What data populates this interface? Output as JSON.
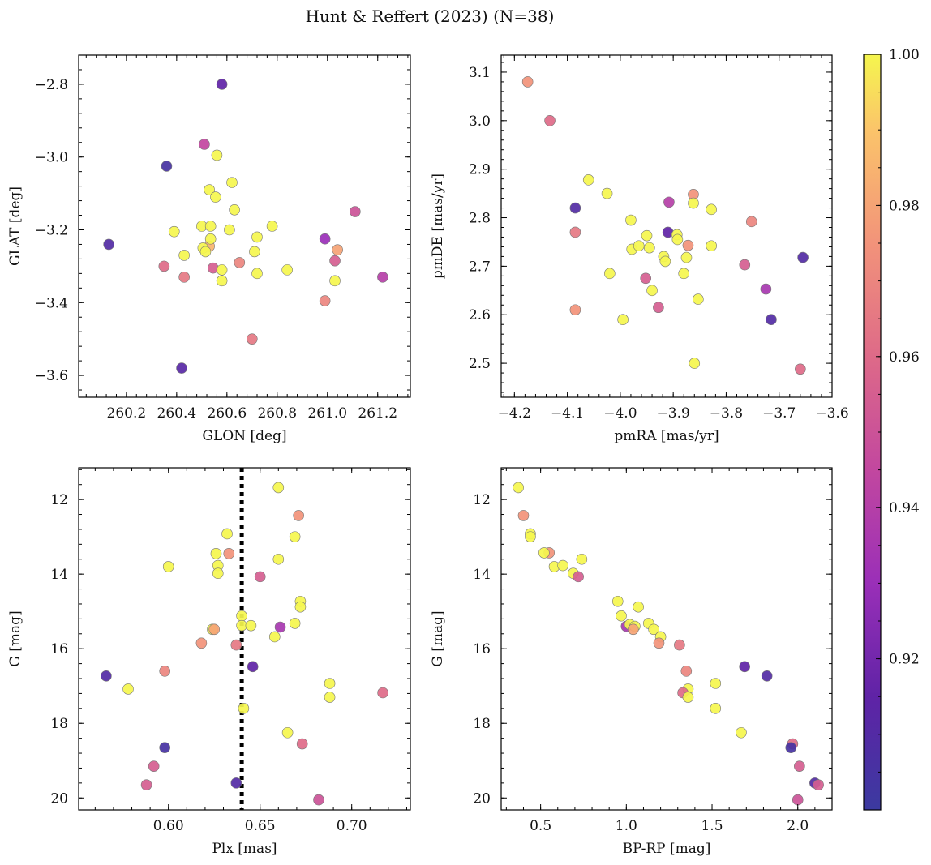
{
  "figure": {
    "title": "Hunt & Reffert (2023) (N=38)"
  },
  "colorbar": {
    "min": 0.9,
    "max": 1.0,
    "ticks": [
      0.92,
      0.94,
      0.96,
      0.98,
      1.0
    ],
    "tick_labels": [
      "0.92",
      "0.94",
      "0.96",
      "0.98",
      "1.00"
    ],
    "colormap": "plasma"
  },
  "chart_data": [
    {
      "type": "scatter",
      "xlabel": "GLON [deg]",
      "ylabel": "GLAT [deg]",
      "xlim": [
        260.01,
        261.33
      ],
      "ylim": [
        -3.66,
        -2.72
      ],
      "xticks": [
        260.2,
        260.4,
        260.6,
        260.8,
        261.0,
        261.2
      ],
      "xtick_labels": [
        "260.2",
        "260.4",
        "260.6",
        "260.8",
        "261.0",
        "261.2"
      ],
      "yticks": [
        -3.6,
        -3.4,
        -3.2,
        -3.0,
        -2.8
      ],
      "ytick_labels": [
        "−3.6",
        "−3.4",
        "−3.2",
        "−3.0",
        "−2.8"
      ],
      "points": [
        {
          "x": 260.13,
          "y": -3.24,
          "c": 0.91
        },
        {
          "x": 260.36,
          "y": -3.025,
          "c": 0.905
        },
        {
          "x": 260.58,
          "y": -2.8,
          "c": 0.915
        },
        {
          "x": 260.42,
          "y": -3.58,
          "c": 0.912
        },
        {
          "x": 260.99,
          "y": -3.225,
          "c": 0.93
        },
        {
          "x": 261.22,
          "y": -3.33,
          "c": 0.94
        },
        {
          "x": 260.51,
          "y": -2.965,
          "c": 0.945
        },
        {
          "x": 261.11,
          "y": -3.15,
          "c": 0.95
        },
        {
          "x": 261.03,
          "y": -3.285,
          "c": 0.955
        },
        {
          "x": 260.35,
          "y": -3.3,
          "c": 0.96
        },
        {
          "x": 260.545,
          "y": -3.305,
          "c": 0.955
        },
        {
          "x": 260.43,
          "y": -3.33,
          "c": 0.965
        },
        {
          "x": 260.7,
          "y": -3.5,
          "c": 0.965
        },
        {
          "x": 260.99,
          "y": -3.395,
          "c": 0.97
        },
        {
          "x": 260.65,
          "y": -3.29,
          "c": 0.97
        },
        {
          "x": 261.04,
          "y": -3.255,
          "c": 0.98
        },
        {
          "x": 260.53,
          "y": -3.245,
          "c": 0.985
        },
        {
          "x": 260.56,
          "y": -2.995,
          "c": 1.0
        },
        {
          "x": 260.62,
          "y": -3.07,
          "c": 1.0
        },
        {
          "x": 260.53,
          "y": -3.09,
          "c": 1.0
        },
        {
          "x": 260.555,
          "y": -3.11,
          "c": 1.0
        },
        {
          "x": 260.63,
          "y": -3.145,
          "c": 1.0
        },
        {
          "x": 260.5,
          "y": -3.19,
          "c": 1.0
        },
        {
          "x": 260.535,
          "y": -3.19,
          "c": 1.0
        },
        {
          "x": 260.39,
          "y": -3.205,
          "c": 1.0
        },
        {
          "x": 260.61,
          "y": -3.2,
          "c": 1.0
        },
        {
          "x": 260.535,
          "y": -3.225,
          "c": 1.0
        },
        {
          "x": 260.505,
          "y": -3.25,
          "c": 1.0
        },
        {
          "x": 260.515,
          "y": -3.26,
          "c": 1.0
        },
        {
          "x": 260.43,
          "y": -3.27,
          "c": 1.0
        },
        {
          "x": 260.58,
          "y": -3.31,
          "c": 1.0
        },
        {
          "x": 260.58,
          "y": -3.34,
          "c": 1.0
        },
        {
          "x": 260.72,
          "y": -3.22,
          "c": 1.0
        },
        {
          "x": 260.71,
          "y": -3.26,
          "c": 1.0
        },
        {
          "x": 260.72,
          "y": -3.32,
          "c": 1.0
        },
        {
          "x": 260.78,
          "y": -3.19,
          "c": 1.0
        },
        {
          "x": 260.84,
          "y": -3.31,
          "c": 1.0
        },
        {
          "x": 261.03,
          "y": -3.34,
          "c": 1.0
        }
      ]
    },
    {
      "type": "scatter",
      "xlabel": "pmRA [mas/yr]",
      "ylabel": "pmDE [mas/yr]",
      "xlim": [
        -4.225,
        -3.6
      ],
      "ylim": [
        2.43,
        3.135
      ],
      "xticks": [
        -4.2,
        -4.1,
        -4.0,
        -3.9,
        -3.8,
        -3.7,
        -3.6
      ],
      "xtick_labels": [
        "−4.2",
        "−4.1",
        "−4.0",
        "−3.9",
        "−3.8",
        "−3.7",
        "−3.6"
      ],
      "yticks": [
        2.5,
        2.6,
        2.7,
        2.8,
        2.9,
        3.0,
        3.1
      ],
      "ytick_labels": [
        "2.5",
        "2.6",
        "2.7",
        "2.8",
        "2.9",
        "3.0",
        "3.1"
      ],
      "points": [
        {
          "x": -4.175,
          "y": 3.08,
          "c": 0.975
        },
        {
          "x": -4.133,
          "y": 3.0,
          "c": 0.96
        },
        {
          "x": -4.085,
          "y": 2.82,
          "c": 0.91
        },
        {
          "x": -4.085,
          "y": 2.77,
          "c": 0.965
        },
        {
          "x": -4.085,
          "y": 2.61,
          "c": 0.975
        },
        {
          "x": -4.06,
          "y": 2.878,
          "c": 1.0
        },
        {
          "x": -4.025,
          "y": 2.85,
          "c": 1.0
        },
        {
          "x": -4.02,
          "y": 2.685,
          "c": 1.0
        },
        {
          "x": -3.995,
          "y": 2.59,
          "c": 1.0
        },
        {
          "x": -3.98,
          "y": 2.795,
          "c": 1.0
        },
        {
          "x": -3.978,
          "y": 2.735,
          "c": 1.0
        },
        {
          "x": -3.965,
          "y": 2.742,
          "c": 1.0
        },
        {
          "x": -3.952,
          "y": 2.675,
          "c": 0.955
        },
        {
          "x": -3.95,
          "y": 2.763,
          "c": 1.0
        },
        {
          "x": -3.945,
          "y": 2.738,
          "c": 1.0
        },
        {
          "x": -3.94,
          "y": 2.65,
          "c": 1.0
        },
        {
          "x": -3.928,
          "y": 2.615,
          "c": 0.955
        },
        {
          "x": -3.918,
          "y": 2.72,
          "c": 1.0
        },
        {
          "x": -3.915,
          "y": 2.71,
          "c": 1.0
        },
        {
          "x": -3.91,
          "y": 2.77,
          "c": 0.915
        },
        {
          "x": -3.908,
          "y": 2.832,
          "c": 0.94
        },
        {
          "x": -3.893,
          "y": 2.765,
          "c": 1.0
        },
        {
          "x": -3.892,
          "y": 2.755,
          "c": 1.0
        },
        {
          "x": -3.88,
          "y": 2.685,
          "c": 1.0
        },
        {
          "x": -3.875,
          "y": 2.718,
          "c": 1.0
        },
        {
          "x": -3.872,
          "y": 2.743,
          "c": 0.975
        },
        {
          "x": -3.862,
          "y": 2.848,
          "c": 0.975
        },
        {
          "x": -3.862,
          "y": 2.83,
          "c": 1.0
        },
        {
          "x": -3.86,
          "y": 2.5,
          "c": 1.0
        },
        {
          "x": -3.853,
          "y": 2.632,
          "c": 1.0
        },
        {
          "x": -3.828,
          "y": 2.817,
          "c": 1.0
        },
        {
          "x": -3.828,
          "y": 2.742,
          "c": 1.0
        },
        {
          "x": -3.765,
          "y": 2.703,
          "c": 0.955
        },
        {
          "x": -3.752,
          "y": 2.792,
          "c": 0.97
        },
        {
          "x": -3.725,
          "y": 2.653,
          "c": 0.935
        },
        {
          "x": -3.715,
          "y": 2.59,
          "c": 0.91
        },
        {
          "x": -3.66,
          "y": 2.488,
          "c": 0.96
        },
        {
          "x": -3.655,
          "y": 2.718,
          "c": 0.91
        }
      ]
    },
    {
      "type": "scatter",
      "xlabel": "Plx [mas]",
      "ylabel": "G [mag]",
      "xlim": [
        0.551,
        0.732
      ],
      "ylim": [
        20.32,
        11.15
      ],
      "xticks": [
        0.6,
        0.65,
        0.7
      ],
      "xtick_labels": [
        "0.60",
        "0.65",
        "0.70"
      ],
      "yticks": [
        12,
        14,
        16,
        18,
        20
      ],
      "ytick_labels": [
        "12",
        "14",
        "16",
        "18",
        "20"
      ],
      "vline": {
        "x": 0.64
      },
      "points": [
        {
          "x": 0.66,
          "y": 11.68,
          "c": 1.0
        },
        {
          "x": 0.671,
          "y": 12.43,
          "c": 0.975
        },
        {
          "x": 0.632,
          "y": 12.92,
          "c": 1.0
        },
        {
          "x": 0.669,
          "y": 13.0,
          "c": 1.0
        },
        {
          "x": 0.626,
          "y": 13.45,
          "c": 1.0
        },
        {
          "x": 0.633,
          "y": 13.45,
          "c": 0.975
        },
        {
          "x": 0.66,
          "y": 13.6,
          "c": 1.0
        },
        {
          "x": 0.627,
          "y": 13.77,
          "c": 1.0
        },
        {
          "x": 0.6,
          "y": 13.8,
          "c": 1.0
        },
        {
          "x": 0.627,
          "y": 13.98,
          "c": 1.0
        },
        {
          "x": 0.65,
          "y": 14.07,
          "c": 0.955
        },
        {
          "x": 0.672,
          "y": 14.73,
          "c": 1.0
        },
        {
          "x": 0.672,
          "y": 14.88,
          "c": 1.0
        },
        {
          "x": 0.64,
          "y": 15.12,
          "c": 1.0
        },
        {
          "x": 0.669,
          "y": 15.32,
          "c": 1.0
        },
        {
          "x": 0.64,
          "y": 15.38,
          "c": 1.0
        },
        {
          "x": 0.645,
          "y": 15.38,
          "c": 1.0
        },
        {
          "x": 0.661,
          "y": 15.42,
          "c": 0.935
        },
        {
          "x": 0.624,
          "y": 15.48,
          "c": 1.0
        },
        {
          "x": 0.625,
          "y": 15.48,
          "c": 0.98
        },
        {
          "x": 0.658,
          "y": 15.68,
          "c": 1.0
        },
        {
          "x": 0.618,
          "y": 15.85,
          "c": 0.975
        },
        {
          "x": 0.637,
          "y": 15.9,
          "c": 0.965
        },
        {
          "x": 0.646,
          "y": 16.48,
          "c": 0.915
        },
        {
          "x": 0.598,
          "y": 16.6,
          "c": 0.97
        },
        {
          "x": 0.566,
          "y": 16.73,
          "c": 0.91
        },
        {
          "x": 0.688,
          "y": 16.93,
          "c": 1.0
        },
        {
          "x": 0.578,
          "y": 17.08,
          "c": 1.0
        },
        {
          "x": 0.717,
          "y": 17.18,
          "c": 0.96
        },
        {
          "x": 0.688,
          "y": 17.3,
          "c": 1.0
        },
        {
          "x": 0.641,
          "y": 17.6,
          "c": 1.0
        },
        {
          "x": 0.665,
          "y": 18.25,
          "c": 1.0
        },
        {
          "x": 0.673,
          "y": 18.55,
          "c": 0.96
        },
        {
          "x": 0.598,
          "y": 18.65,
          "c": 0.905
        },
        {
          "x": 0.592,
          "y": 19.15,
          "c": 0.955
        },
        {
          "x": 0.637,
          "y": 19.6,
          "c": 0.91
        },
        {
          "x": 0.588,
          "y": 19.65,
          "c": 0.955
        },
        {
          "x": 0.682,
          "y": 20.05,
          "c": 0.95
        }
      ]
    },
    {
      "type": "scatter",
      "xlabel": "BP-RP [mag]",
      "ylabel": "G [mag]",
      "xlim": [
        0.27,
        2.2
      ],
      "ylim": [
        20.32,
        11.15
      ],
      "xticks": [
        0.5,
        1.0,
        1.5,
        2.0
      ],
      "xtick_labels": [
        "0.5",
        "1.0",
        "1.5",
        "2.0"
      ],
      "yticks": [
        12,
        14,
        16,
        18,
        20
      ],
      "ytick_labels": [
        "12",
        "14",
        "16",
        "18",
        "20"
      ],
      "points": [
        {
          "x": 0.37,
          "y": 11.68,
          "c": 1.0
        },
        {
          "x": 0.4,
          "y": 12.43,
          "c": 0.975
        },
        {
          "x": 0.44,
          "y": 12.92,
          "c": 1.0
        },
        {
          "x": 0.44,
          "y": 13.0,
          "c": 1.0
        },
        {
          "x": 0.55,
          "y": 13.43,
          "c": 0.975
        },
        {
          "x": 0.52,
          "y": 13.43,
          "c": 1.0
        },
        {
          "x": 0.58,
          "y": 13.8,
          "c": 1.0
        },
        {
          "x": 0.63,
          "y": 13.77,
          "c": 1.0
        },
        {
          "x": 0.69,
          "y": 13.98,
          "c": 1.0
        },
        {
          "x": 0.72,
          "y": 14.07,
          "c": 0.955
        },
        {
          "x": 0.74,
          "y": 13.6,
          "c": 1.0
        },
        {
          "x": 0.95,
          "y": 14.73,
          "c": 1.0
        },
        {
          "x": 1.07,
          "y": 14.88,
          "c": 1.0
        },
        {
          "x": 0.97,
          "y": 15.12,
          "c": 1.0
        },
        {
          "x": 1.0,
          "y": 15.4,
          "c": 0.935
        },
        {
          "x": 1.02,
          "y": 15.35,
          "c": 1.0
        },
        {
          "x": 1.05,
          "y": 15.4,
          "c": 1.0
        },
        {
          "x": 1.04,
          "y": 15.48,
          "c": 0.98
        },
        {
          "x": 1.13,
          "y": 15.32,
          "c": 1.0
        },
        {
          "x": 1.16,
          "y": 15.48,
          "c": 1.0
        },
        {
          "x": 1.2,
          "y": 15.68,
          "c": 1.0
        },
        {
          "x": 1.19,
          "y": 15.85,
          "c": 0.975
        },
        {
          "x": 1.31,
          "y": 15.9,
          "c": 0.965
        },
        {
          "x": 1.35,
          "y": 16.6,
          "c": 0.97
        },
        {
          "x": 1.69,
          "y": 16.48,
          "c": 0.915
        },
        {
          "x": 1.82,
          "y": 16.73,
          "c": 0.91
        },
        {
          "x": 1.52,
          "y": 16.93,
          "c": 1.0
        },
        {
          "x": 1.36,
          "y": 17.08,
          "c": 1.0
        },
        {
          "x": 1.33,
          "y": 17.18,
          "c": 0.96
        },
        {
          "x": 1.36,
          "y": 17.3,
          "c": 1.0
        },
        {
          "x": 1.52,
          "y": 17.6,
          "c": 1.0
        },
        {
          "x": 1.67,
          "y": 18.25,
          "c": 1.0
        },
        {
          "x": 1.97,
          "y": 18.55,
          "c": 0.96
        },
        {
          "x": 1.96,
          "y": 18.65,
          "c": 0.905
        },
        {
          "x": 2.01,
          "y": 19.15,
          "c": 0.955
        },
        {
          "x": 2.1,
          "y": 19.6,
          "c": 0.91
        },
        {
          "x": 2.12,
          "y": 19.65,
          "c": 0.955
        },
        {
          "x": 2.0,
          "y": 20.05,
          "c": 0.95
        }
      ]
    }
  ]
}
